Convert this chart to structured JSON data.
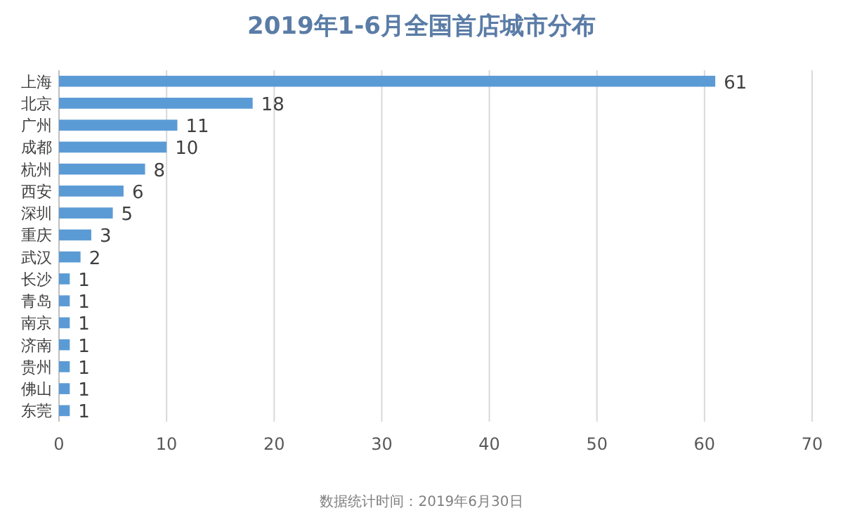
{
  "chart_data": {
    "type": "bar",
    "orientation": "horizontal",
    "title": "2019年1-6月全国首店城市分布",
    "categories": [
      "上海",
      "北京",
      "广州",
      "成都",
      "杭州",
      "西安",
      "深圳",
      "重庆",
      "武汉",
      "长沙",
      "青岛",
      "南京",
      "济南",
      "贵州",
      "佛山",
      "东莞"
    ],
    "values": [
      61,
      18,
      11,
      10,
      8,
      6,
      5,
      3,
      2,
      1,
      1,
      1,
      1,
      1,
      1,
      1
    ],
    "color": "#5b9bd5",
    "xlim": [
      0,
      70
    ],
    "xticks": [
      0,
      10,
      20,
      30,
      40,
      50,
      60,
      70
    ],
    "grid": "x",
    "data_labels": true,
    "annotations": [
      "数据统计时间：2019年6月30日"
    ]
  }
}
